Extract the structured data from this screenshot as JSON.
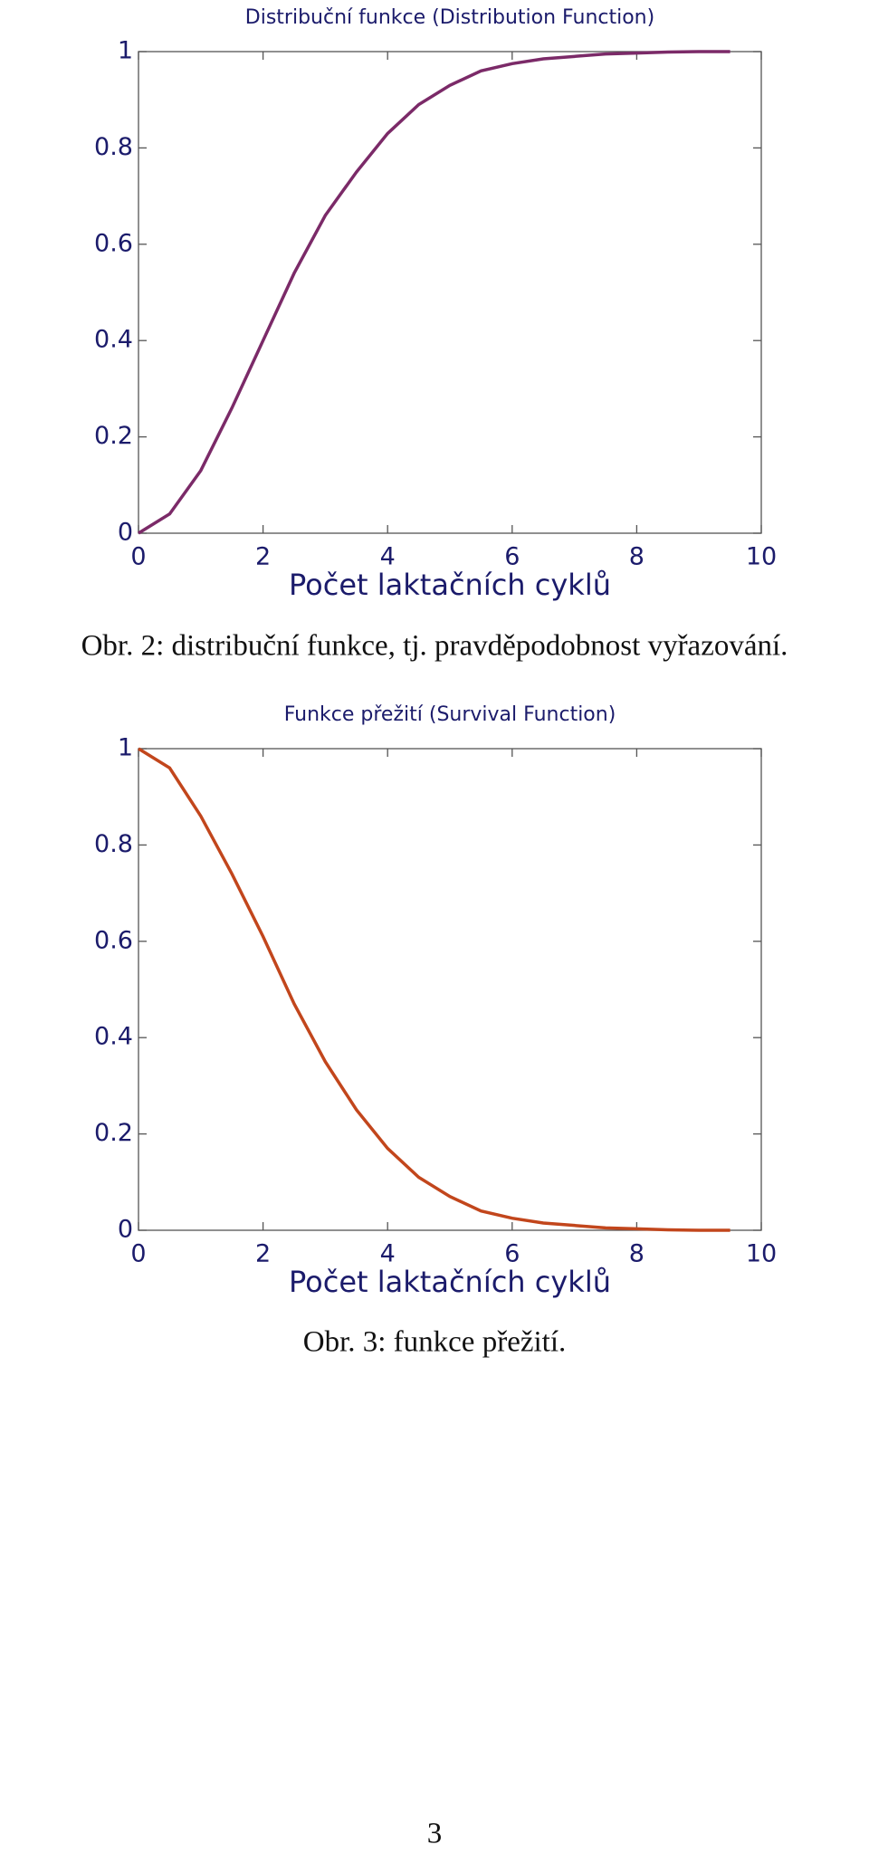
{
  "chart_data": [
    {
      "type": "line",
      "title": "Distribuční funkce (Distribution Function)",
      "x_label": "Počet laktačních cyklů",
      "x": [
        0,
        0.5,
        1,
        1.5,
        2,
        2.5,
        3,
        3.5,
        4,
        4.5,
        5,
        5.5,
        6,
        6.5,
        7,
        7.5,
        8,
        8.5,
        9,
        9.5
      ],
      "series": [
        {
          "color": "#7b2a68",
          "values": [
            0,
            0.04,
            0.13,
            0.26,
            0.4,
            0.54,
            0.66,
            0.75,
            0.83,
            0.89,
            0.93,
            0.96,
            0.975,
            0.985,
            0.99,
            0.995,
            0.997,
            0.999,
            1,
            1
          ]
        }
      ],
      "xlim": [
        0,
        10
      ],
      "ylim": [
        0,
        1
      ],
      "xticks": [
        0,
        2,
        4,
        6,
        8,
        10
      ],
      "yticks": [
        0,
        0.2,
        0.4,
        0.6,
        0.8,
        1
      ]
    },
    {
      "type": "line",
      "title": "Funkce přežití (Survival Function)",
      "x_label": "Počet laktačních cyklů",
      "x": [
        0,
        0.5,
        1,
        1.5,
        2,
        2.5,
        3,
        3.5,
        4,
        4.5,
        5,
        5.5,
        6,
        6.5,
        7,
        7.5,
        8,
        8.5,
        9,
        9.5
      ],
      "series": [
        {
          "color": "#c2461c",
          "values": [
            1,
            0.96,
            0.86,
            0.74,
            0.61,
            0.47,
            0.35,
            0.25,
            0.17,
            0.11,
            0.07,
            0.04,
            0.025,
            0.015,
            0.01,
            0.005,
            0.003,
            0.001,
            0,
            0
          ]
        }
      ],
      "xlim": [
        0,
        10
      ],
      "ylim": [
        0,
        1
      ],
      "xticks": [
        0,
        2,
        4,
        6,
        8,
        10
      ],
      "yticks": [
        0,
        0.2,
        0.4,
        0.6,
        0.8,
        1
      ]
    }
  ],
  "captions": [
    "Obr. 2: distribuční funkce, tj. pravděpodobnost vyřazování.",
    "Obr. 3: funkce přežití."
  ],
  "page_number": "3"
}
